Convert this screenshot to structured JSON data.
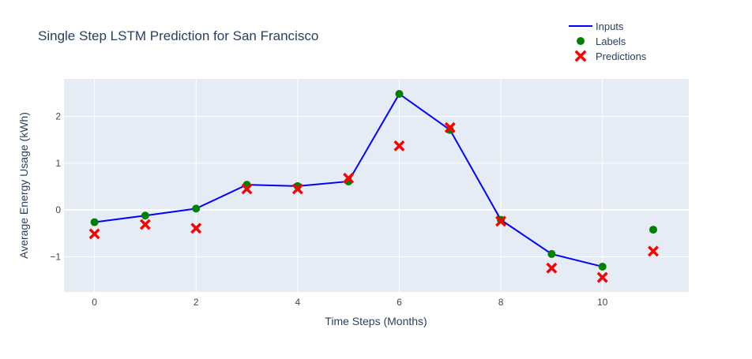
{
  "chart_data": {
    "type": "line",
    "title": "Single Step LSTM Prediction for San Francisco",
    "xlabel": "Time Steps (Months)",
    "ylabel": "Average Energy Usage (kWh)",
    "xlim": [
      -0.6,
      11.7
    ],
    "ylim": [
      -1.75,
      2.8
    ],
    "x_ticks": [
      0,
      2,
      4,
      6,
      8,
      10
    ],
    "x_tick_labels": [
      "0",
      "2",
      "4",
      "6",
      "8",
      "10"
    ],
    "y_ticks": [
      -1,
      0,
      1,
      2
    ],
    "y_tick_labels": [
      "−1",
      "0",
      "1",
      "2"
    ],
    "grid": true,
    "legend_position": "top-right",
    "series": [
      {
        "name": "Inputs",
        "type": "line",
        "color": "#0000ff",
        "x": [
          0,
          1,
          2,
          3,
          4,
          5,
          6,
          7,
          8,
          9,
          10
        ],
        "y": [
          -0.26,
          -0.12,
          0.03,
          0.54,
          0.51,
          0.61,
          2.48,
          1.71,
          -0.21,
          -0.94,
          -1.21
        ]
      },
      {
        "name": "Labels",
        "type": "scatter",
        "marker": "circle",
        "color": "#008000",
        "x": [
          0,
          1,
          2,
          3,
          4,
          5,
          6,
          7,
          8,
          9,
          10,
          11
        ],
        "y": [
          -0.26,
          -0.12,
          0.03,
          0.54,
          0.51,
          0.61,
          2.48,
          1.71,
          -0.21,
          -0.94,
          -1.21,
          -0.42
        ]
      },
      {
        "name": "Predictions",
        "type": "scatter",
        "marker": "x",
        "color": "#ff0000",
        "x": [
          0,
          1,
          2,
          3,
          4,
          5,
          6,
          7,
          8,
          9,
          10,
          11
        ],
        "y": [
          -0.51,
          -0.31,
          -0.39,
          0.45,
          0.45,
          0.68,
          1.37,
          1.76,
          -0.24,
          -1.24,
          -1.44,
          -0.88
        ]
      }
    ]
  },
  "colors": {
    "plot_background": "#e5ecf6",
    "grid": "#ffffff",
    "text": "#2a3f5f",
    "tick_text": "#444444"
  }
}
